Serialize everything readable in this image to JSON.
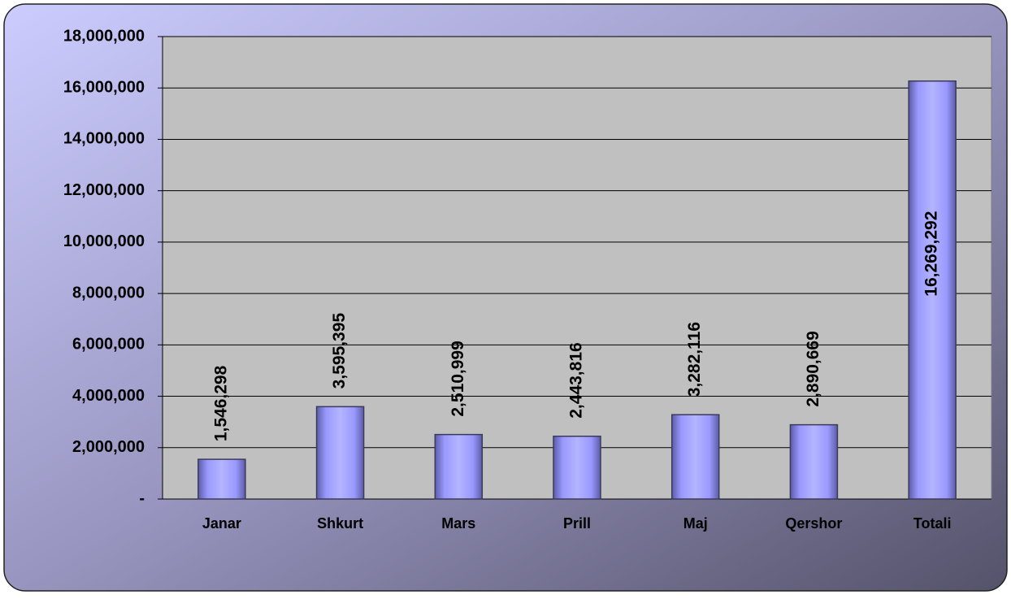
{
  "chart_data": {
    "type": "bar",
    "categories": [
      "Janar",
      "Shkurt",
      "Mars",
      "Prill",
      "Maj",
      "Qershor",
      "Totali"
    ],
    "values": [
      1546298,
      3595395,
      2510999,
      2443816,
      3282116,
      2890669,
      16269292
    ],
    "value_labels": [
      "1,546,298",
      "3,595,395",
      "2,510,999",
      "2,443,816",
      "3,282,116",
      "2,890,669",
      "16,269,292"
    ],
    "color": "#9999ff",
    "ylim": [
      0,
      18000000
    ],
    "yticks": [
      {
        "value": 0,
        "label": "-"
      },
      {
        "value": 2000000,
        "label": "2,000,000"
      },
      {
        "value": 4000000,
        "label": "4,000,000"
      },
      {
        "value": 6000000,
        "label": "6,000,000"
      },
      {
        "value": 8000000,
        "label": "8,000,000"
      },
      {
        "value": 10000000,
        "label": "10,000,000"
      },
      {
        "value": 12000000,
        "label": "12,000,000"
      },
      {
        "value": 14000000,
        "label": "14,000,000"
      },
      {
        "value": 16000000,
        "label": "16,000,000"
      },
      {
        "value": 18000000,
        "label": "18,000,000"
      }
    ],
    "grid": true
  }
}
